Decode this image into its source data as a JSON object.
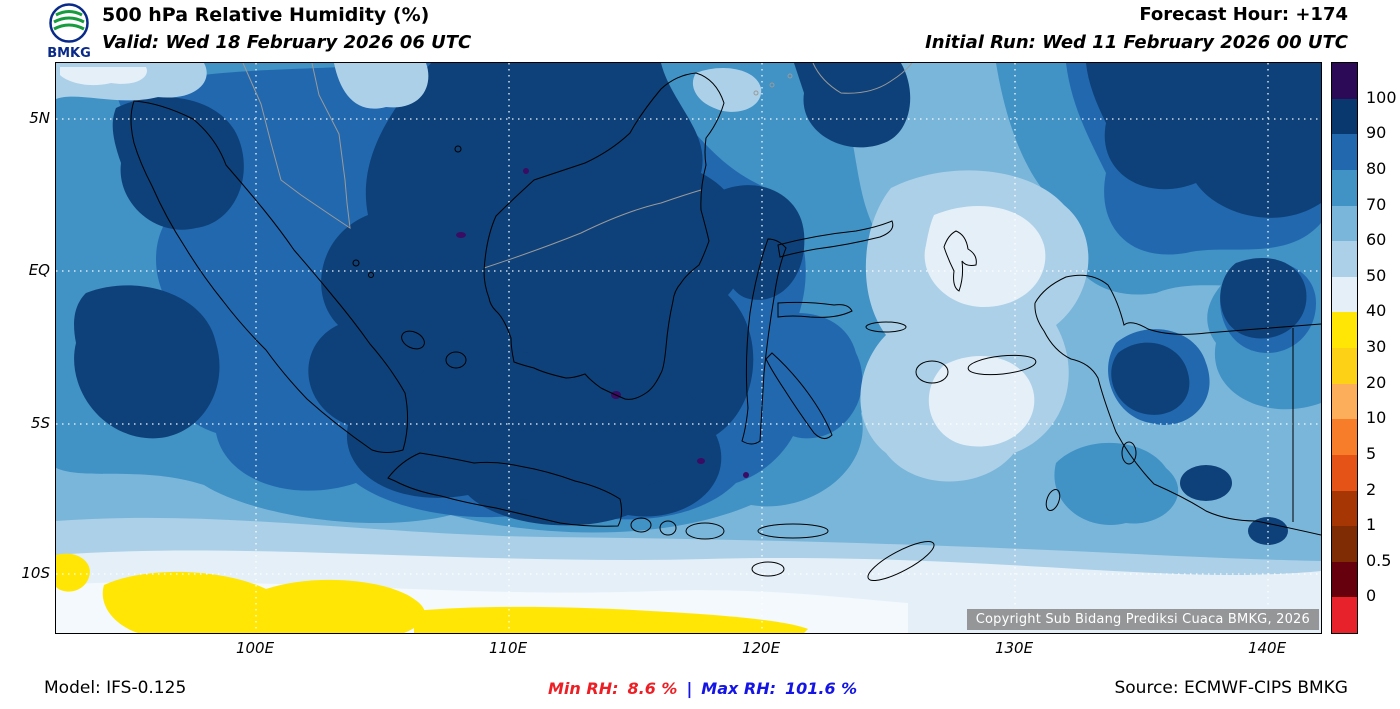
{
  "header": {
    "logo_text": "BMKG",
    "title": "500 hPa Relative Humidity (%)",
    "valid_line": "Valid: Wed 18 February 2026 06 UTC",
    "forecast_hour": "Forecast Hour: +174",
    "initial_run": "Initial Run: Wed 11 February 2026 00 UTC"
  },
  "map": {
    "lat_labels": [
      "5N",
      "EQ",
      "5S",
      "10S"
    ],
    "lon_labels": [
      "100E",
      "110E",
      "120E",
      "130E",
      "140E"
    ],
    "copyright": "Copyright Sub Bidang Prediksi Cuaca BMKG, 2026"
  },
  "colorbar": {
    "tick_labels": [
      "100",
      "90",
      "80",
      "70",
      "60",
      "50",
      "40",
      "30",
      "20",
      "10",
      "5",
      "2",
      "1",
      "0.5",
      "0"
    ],
    "colors": [
      "#2d0a57",
      "#09386f",
      "#2268ae",
      "#4192c5",
      "#7ab6da",
      "#acd0e8",
      "#e4eff8",
      "#ffe605",
      "#fcd116",
      "#fcae5a",
      "#f87d2a",
      "#e65316",
      "#a63603",
      "#7f2b04",
      "#67000d",
      "#e8222a"
    ]
  },
  "footer": {
    "model": "Model: IFS-0.125",
    "min_rh_label": "Min RH:",
    "min_rh_value": "8.6 %",
    "separator": "|",
    "max_rh_label": "Max RH:",
    "max_rh_value": "101.6 %",
    "source": "Source: ECMWF-CIPS BMKG",
    "min_color": "#ed1f24",
    "max_color": "#1414e6"
  },
  "chart_data": {
    "type": "heatmap",
    "title": "500 hPa Relative Humidity (%)",
    "units": "%",
    "levels": [
      0,
      0.5,
      1,
      2,
      5,
      10,
      20,
      30,
      40,
      50,
      60,
      70,
      80,
      90,
      100
    ],
    "level_colors_low_to_high": [
      "#e8222a",
      "#67000d",
      "#7f2b04",
      "#a63603",
      "#e65316",
      "#f87d2a",
      "#fcae5a",
      "#fcd116",
      "#ffe605",
      "#e4eff8",
      "#acd0e8",
      "#7ab6da",
      "#4192c5",
      "#2268ae",
      "#09386f",
      "#2d0a57"
    ],
    "lon_ticks": [
      "100E",
      "110E",
      "120E",
      "130E",
      "140E"
    ],
    "lat_ticks": [
      "5N",
      "EQ",
      "5S",
      "10S"
    ],
    "min_rh_percent": 8.6,
    "max_rh_percent": 101.6,
    "forecast_hour": 174,
    "valid_time": "Wed 18 February 2026 06 UTC",
    "initial_run": "Wed 11 February 2026 00 UTC",
    "model": "IFS-0.125",
    "source": "ECMWF-CIPS BMKG"
  }
}
